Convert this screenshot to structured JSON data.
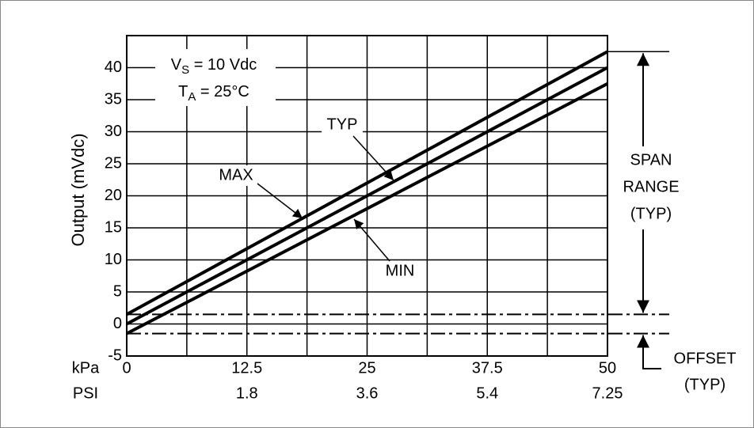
{
  "chart_data": {
    "type": "line",
    "y_label": "Output (mVdc)",
    "x_label": "kPa",
    "x2_label": "PSI",
    "x": [
      0,
      50
    ],
    "series": [
      {
        "name": "MAX",
        "color": "#000000",
        "values": [
          1.5,
          42.5
        ]
      },
      {
        "name": "TYP",
        "color": "#000000",
        "values": [
          0,
          40
        ]
      },
      {
        "name": "MIN",
        "color": "#000000",
        "values": [
          -1.5,
          37.5
        ]
      }
    ],
    "xlim": [
      0,
      50
    ],
    "xticks": [
      0,
      12.5,
      25,
      37.5,
      50
    ],
    "x_grid": [
      0,
      6.25,
      12.5,
      18.75,
      25,
      31.25,
      37.5,
      43.75,
      50
    ],
    "x2ticks": [
      {
        "value": 12.5,
        "label": "1.8"
      },
      {
        "value": 25,
        "label": "3.6"
      },
      {
        "value": 37.5,
        "label": "5.4"
      },
      {
        "value": 50,
        "label": "7.25"
      }
    ],
    "ylim": [
      -5,
      45
    ],
    "yticks": [
      -5,
      0,
      5,
      10,
      15,
      20,
      25,
      30,
      35,
      40
    ],
    "grid": true,
    "offset_lines": [
      1.5,
      -1.5
    ],
    "conditions": [
      {
        "text": "V",
        "sub": "S",
        "rest": " = 10 Vdc"
      },
      {
        "text": "T",
        "sub": "A",
        "rest": " = 25°C"
      }
    ],
    "span_label": [
      "SPAN",
      "RANGE",
      "(TYP)"
    ],
    "offset_label": [
      "OFFSET",
      "(TYP)"
    ]
  }
}
